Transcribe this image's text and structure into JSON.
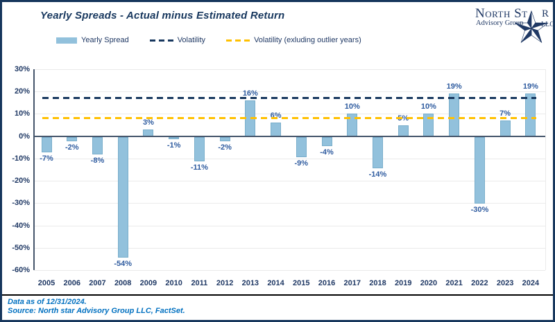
{
  "header": {
    "title": "Yearly Spreads - Actual minus Estimated Return"
  },
  "logo": {
    "name_pre": "North St",
    "name_post": "R",
    "subtitle": "Advisory Group",
    "suffix": "LLC"
  },
  "legend": [
    {
      "label": "Yearly Spread",
      "type": "bar",
      "color": "#92C1DC"
    },
    {
      "label": "Volatility",
      "type": "dash",
      "color": "#17375E"
    },
    {
      "label": "Volatility (exluding outlier years)",
      "type": "dash",
      "color": "#FFC000"
    }
  ],
  "chart_data": {
    "type": "bar",
    "title": "Yearly Spreads - Actual minus Estimated Return",
    "categories": [
      "2005",
      "2006",
      "2007",
      "2008",
      "2009",
      "2010",
      "2011",
      "2012",
      "2013",
      "2014",
      "2015",
      "2016",
      "2017",
      "2018",
      "2019",
      "2020",
      "2021",
      "2022",
      "2023",
      "2024"
    ],
    "series": [
      {
        "name": "Yearly Spread",
        "values": [
          -7,
          -2,
          -8,
          -54,
          3,
          -1,
          -11,
          -2,
          16,
          6,
          -9,
          -4,
          10,
          -14,
          5,
          10,
          19,
          -30,
          7,
          19
        ]
      }
    ],
    "reference_lines": [
      {
        "name": "Volatility",
        "value": 17,
        "color": "#17375E"
      },
      {
        "name": "Volatility (exluding outlier years)",
        "value": 8,
        "color": "#FFC000"
      }
    ],
    "bar_color": "#92C1DC",
    "value_suffix": "%",
    "xlabel": "",
    "ylabel": "",
    "ylim": [
      -60,
      30
    ],
    "ytick_step": 10,
    "grid": true,
    "legend_position": "top-left"
  },
  "footer": {
    "line1": "Data as of 12/31/2024.",
    "line2": "Source: North star Advisory Group LLC, FactSet."
  }
}
